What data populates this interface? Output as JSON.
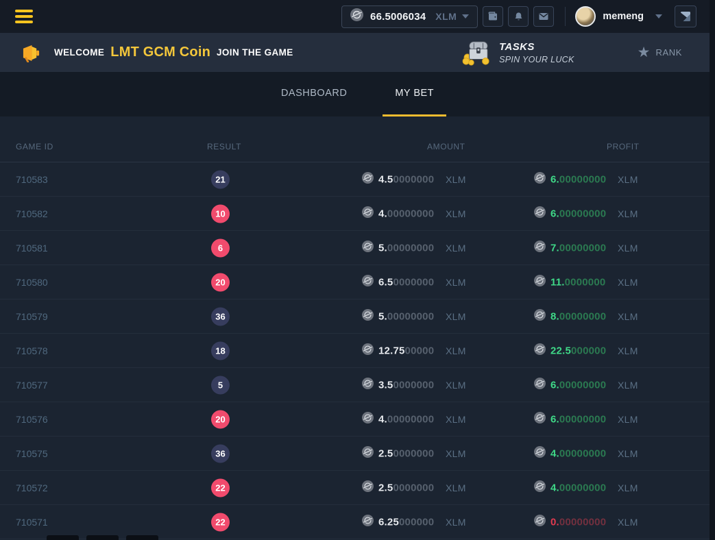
{
  "navbar": {
    "balance_value": "66.5006034",
    "balance_currency": "XLM",
    "username": "memeng"
  },
  "banner": {
    "welcome_prefix": "WELCOME",
    "brand": "LMT GCM Coin",
    "welcome_suffix": "JOIN THE GAME",
    "tasks_title": "TASKS",
    "tasks_subtitle": "SPIN YOUR LUCK",
    "rank_label": "RANK"
  },
  "tabs": [
    {
      "label": "DASHBOARD",
      "active": false
    },
    {
      "label": "MY BET",
      "active": true
    }
  ],
  "table": {
    "headers": [
      "GAME ID",
      "RESULT",
      "AMOUNT",
      "PROFIT"
    ],
    "currency": "XLM",
    "rows": [
      {
        "game_id": "710583",
        "result": "21",
        "result_color": "dark",
        "amount_main": "4.5",
        "amount_zeros": "0000000",
        "profit_main": "6.",
        "profit_zeros": "00000000",
        "profit_state": "win"
      },
      {
        "game_id": "710582",
        "result": "10",
        "result_color": "red",
        "amount_main": "4.",
        "amount_zeros": "00000000",
        "profit_main": "6.",
        "profit_zeros": "00000000",
        "profit_state": "win"
      },
      {
        "game_id": "710581",
        "result": "6",
        "result_color": "red",
        "amount_main": "5.",
        "amount_zeros": "00000000",
        "profit_main": "7.",
        "profit_zeros": "00000000",
        "profit_state": "win"
      },
      {
        "game_id": "710580",
        "result": "20",
        "result_color": "red",
        "amount_main": "6.5",
        "amount_zeros": "0000000",
        "profit_main": "11.",
        "profit_zeros": "0000000",
        "profit_state": "win"
      },
      {
        "game_id": "710579",
        "result": "36",
        "result_color": "dark",
        "amount_main": "5.",
        "amount_zeros": "00000000",
        "profit_main": "8.",
        "profit_zeros": "00000000",
        "profit_state": "win"
      },
      {
        "game_id": "710578",
        "result": "18",
        "result_color": "dark",
        "amount_main": "12.75",
        "amount_zeros": "00000",
        "profit_main": "22.5",
        "profit_zeros": "000000",
        "profit_state": "win"
      },
      {
        "game_id": "710577",
        "result": "5",
        "result_color": "dark",
        "amount_main": "3.5",
        "amount_zeros": "0000000",
        "profit_main": "6.",
        "profit_zeros": "00000000",
        "profit_state": "win"
      },
      {
        "game_id": "710576",
        "result": "20",
        "result_color": "red",
        "amount_main": "4.",
        "amount_zeros": "00000000",
        "profit_main": "6.",
        "profit_zeros": "00000000",
        "profit_state": "win"
      },
      {
        "game_id": "710575",
        "result": "36",
        "result_color": "dark",
        "amount_main": "2.5",
        "amount_zeros": "0000000",
        "profit_main": "4.",
        "profit_zeros": "00000000",
        "profit_state": "win"
      },
      {
        "game_id": "710572",
        "result": "22",
        "result_color": "red",
        "amount_main": "2.5",
        "amount_zeros": "0000000",
        "profit_main": "4.",
        "profit_zeros": "00000000",
        "profit_state": "win"
      },
      {
        "game_id": "710571",
        "result": "22",
        "result_color": "red",
        "amount_main": "6.25",
        "amount_zeros": "000000",
        "profit_main": "0.",
        "profit_zeros": "00000000",
        "profit_state": "zero"
      }
    ]
  },
  "icons": {
    "menu": "hamburger",
    "balance_coin": "stellar-coin",
    "wallet": "wallet",
    "notifications": "bell",
    "messages": "envelope",
    "user_dropdown": "caret-down",
    "chat_toggle": "two-tone-square",
    "announcement": "megaphone",
    "tasks": "treasure-chest",
    "rank": "star"
  },
  "colors": {
    "accent_yellow": "#f5bc2f",
    "brand_yellow": "#f4c73b",
    "badge_dark": "#373d5e",
    "badge_red": "#f14b6d",
    "profit_green": "#3fd988",
    "profit_red": "#e23a50"
  }
}
